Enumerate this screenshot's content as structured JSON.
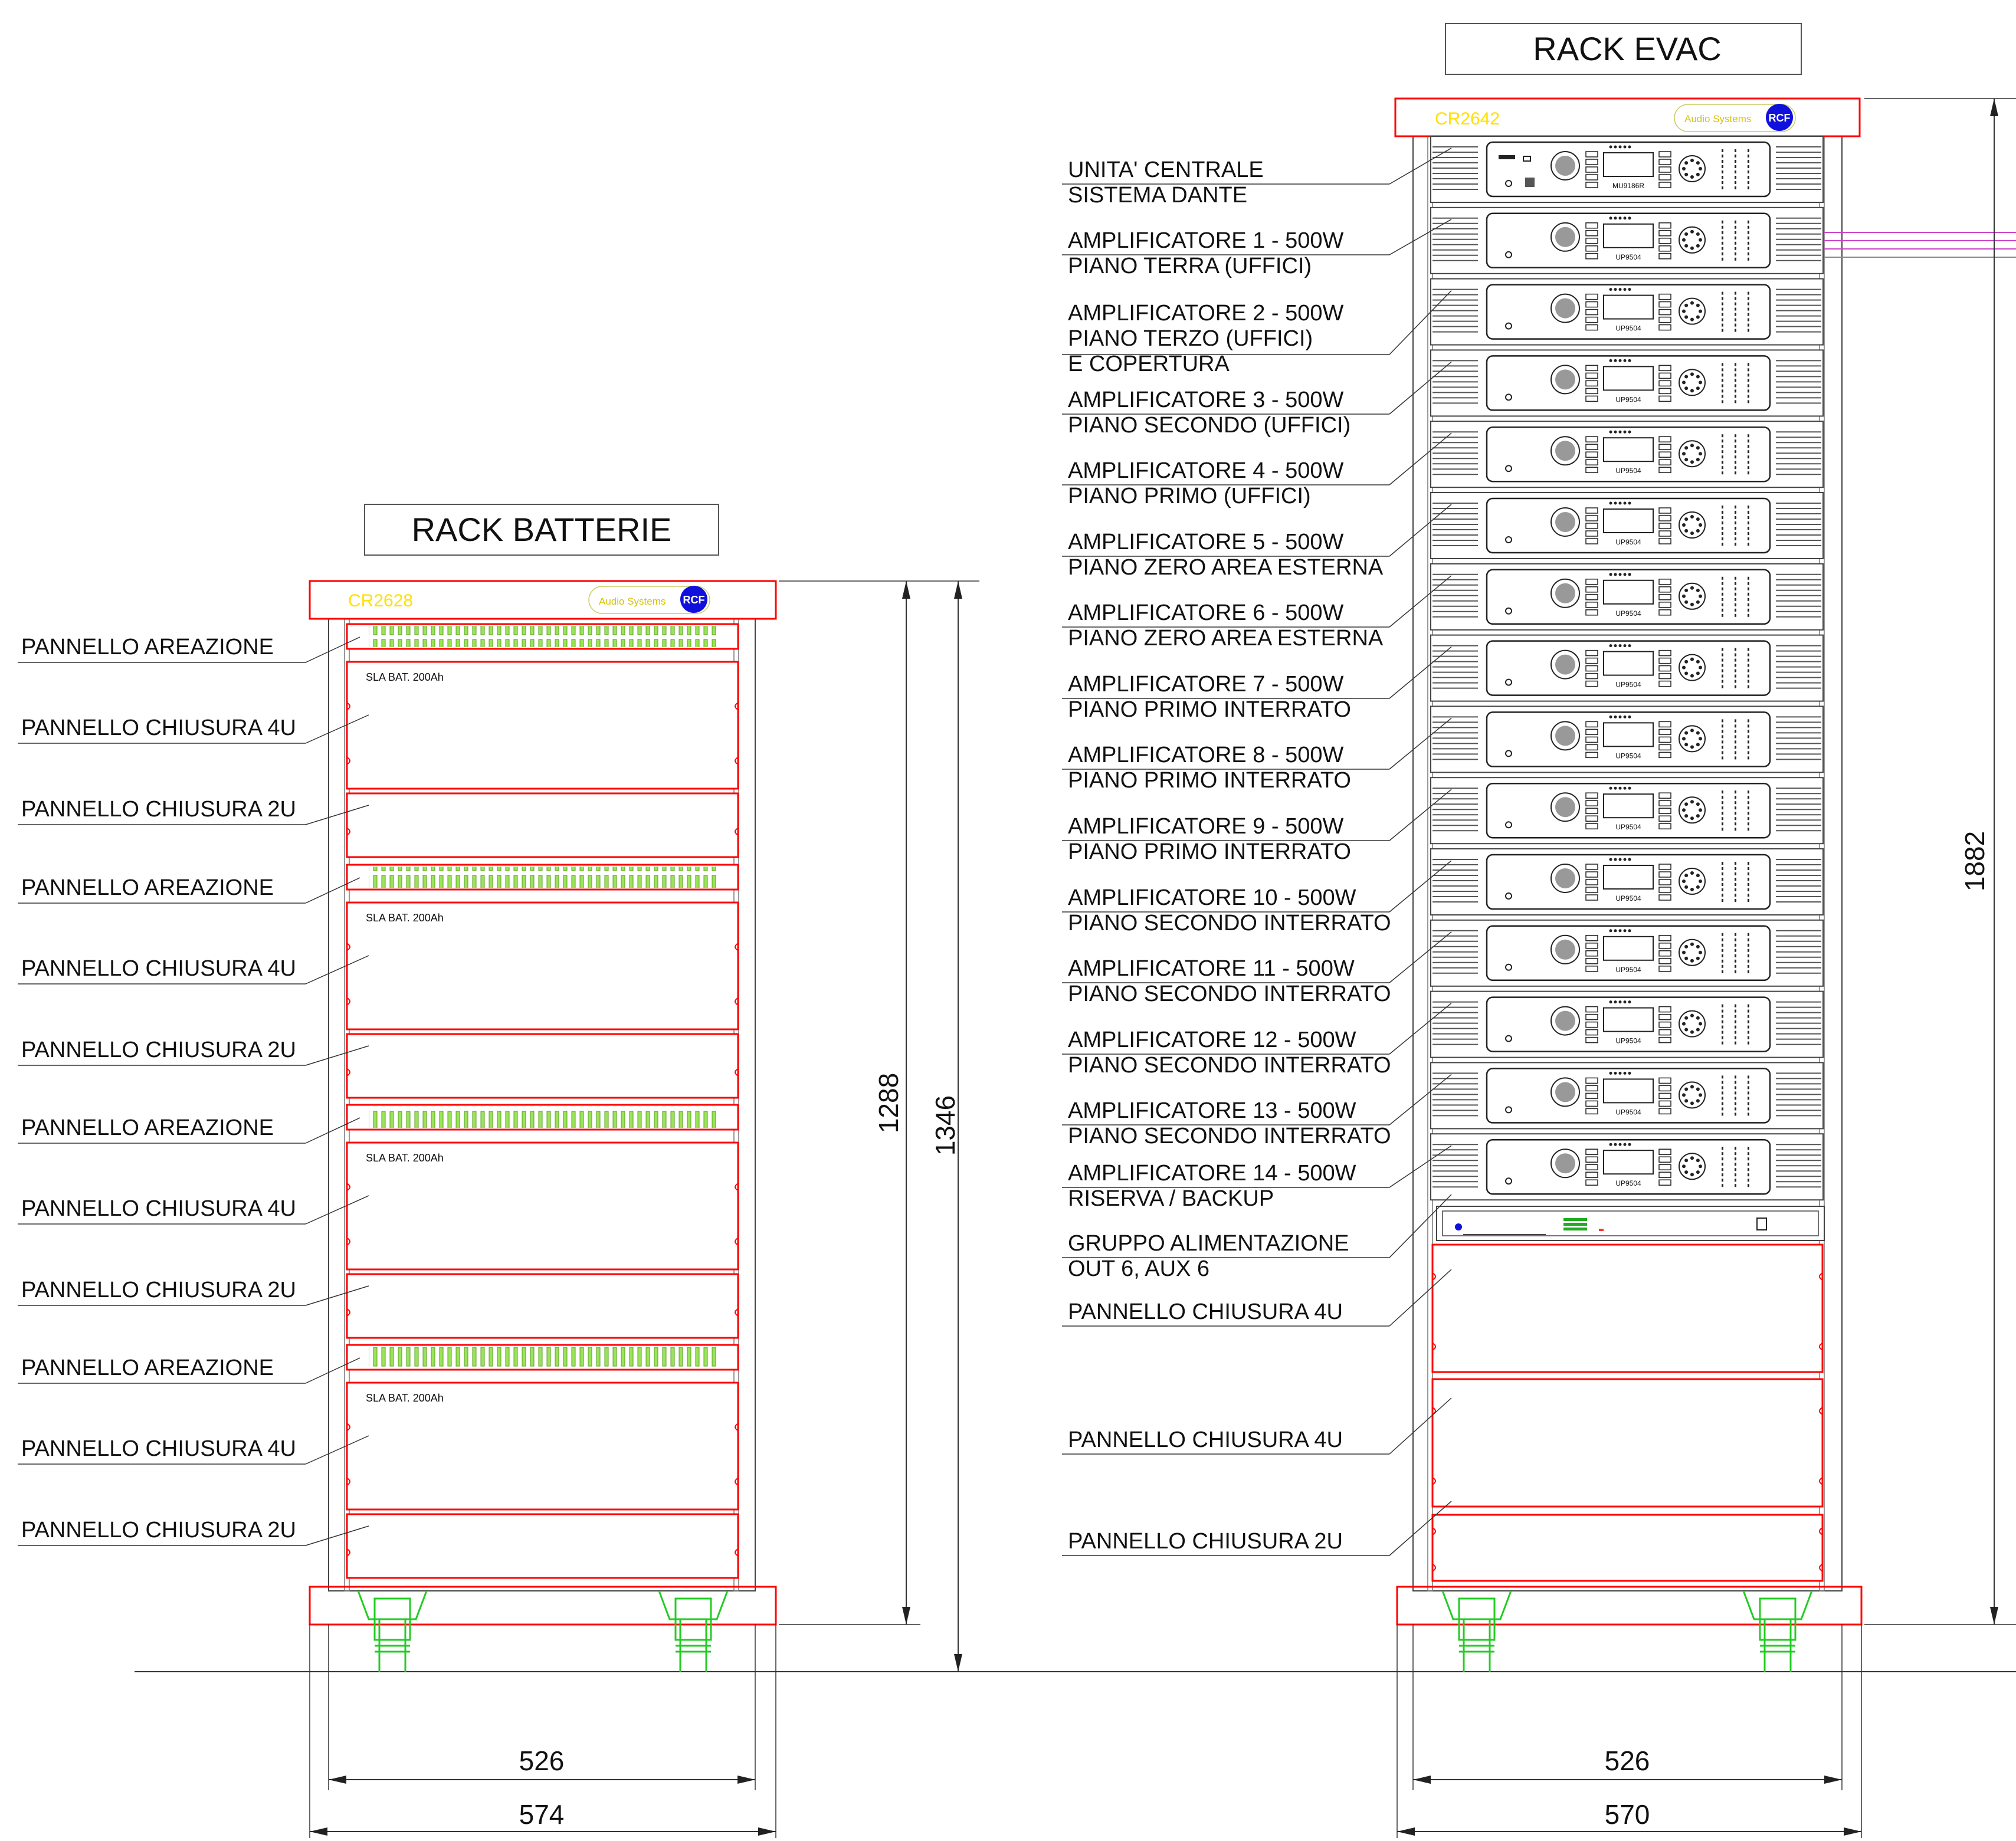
{
  "racks": {
    "batterie": {
      "title": "RACK BATTERIE",
      "model": "CR2628",
      "brand_text": "Audio Systems",
      "brand_logo": "RCF",
      "battery_label": "SLA BAT. 200Ah",
      "labels": [
        "PANNELLO AREAZIONE",
        "PANNELLO CHIUSURA 4U",
        "PANNELLO CHIUSURA 2U",
        "PANNELLO AREAZIONE",
        "PANNELLO CHIUSURA 4U",
        "PANNELLO CHIUSURA 2U",
        "PANNELLO AREAZIONE",
        "PANNELLO CHIUSURA 4U",
        "PANNELLO CHIUSURA 2U",
        "PANNELLO AREAZIONE",
        "PANNELLO CHIUSURA 4U",
        "PANNELLO CHIUSURA 2U"
      ],
      "dim_height_inner": "1288",
      "dim_height_total": "1346",
      "dim_width_inner": "526",
      "dim_width_total": "574"
    },
    "evac": {
      "title": "RACK EVAC",
      "model": "CR2642",
      "brand_text": "Audio Systems",
      "brand_logo": "RCF",
      "central_unit_model": "MU9186R",
      "amp_model": "UP9504",
      "labels": [
        [
          "UNITA' CENTRALE",
          "SISTEMA DANTE"
        ],
        [
          "AMPLIFICATORE 1 - 500W",
          "PIANO TERRA  (UFFICI)"
        ],
        [
          "AMPLIFICATORE 2 - 500W",
          "PIANO TERZO  (UFFICI)",
          "E COPERTURA"
        ],
        [
          "AMPLIFICATORE 3 - 500W",
          "PIANO SECONDO  (UFFICI)"
        ],
        [
          "AMPLIFICATORE 4 - 500W",
          "PIANO PRIMO (UFFICI)"
        ],
        [
          "AMPLIFICATORE 5 - 500W",
          "PIANO ZERO AREA ESTERNA"
        ],
        [
          "AMPLIFICATORE 6 - 500W",
          "PIANO ZERO AREA ESTERNA"
        ],
        [
          "AMPLIFICATORE 7 - 500W",
          "PIANO PRIMO INTERRATO"
        ],
        [
          "AMPLIFICATORE 8 - 500W",
          "PIANO PRIMO INTERRATO"
        ],
        [
          "AMPLIFICATORE 9 - 500W",
          "PIANO PRIMO INTERRATO"
        ],
        [
          "AMPLIFICATORE 10 - 500W",
          "PIANO SECONDO INTERRATO"
        ],
        [
          "AMPLIFICATORE 11 - 500W",
          "PIANO SECONDO INTERRATO"
        ],
        [
          "AMPLIFICATORE 12 - 500W",
          "PIANO SECONDO INTERRATO"
        ],
        [
          "AMPLIFICATORE 13 - 500W",
          "PIANO SECONDO INTERRATO"
        ],
        [
          "AMPLIFICATORE 14 - 500W",
          "RISERVA / BACKUP"
        ],
        [
          "GRUPPO ALIMENTAZIONE",
          "OUT 6, AUX 6"
        ],
        [
          "PANNELLO CHIUSURA 4U"
        ],
        [
          "PANNELLO CHIUSURA 4U"
        ],
        [
          "PANNELLO CHIUSURA 2U"
        ]
      ],
      "dim_height": "1882",
      "dim_width_inner": "526",
      "dim_width_total": "570"
    }
  },
  "colors": {
    "frame": "#ff0000",
    "vent": "#9be35a",
    "model_text": "#ffe000",
    "logo": "#1010dd",
    "wheel": "#22cc22",
    "cable": "#cc44cc",
    "line": "#222222"
  }
}
